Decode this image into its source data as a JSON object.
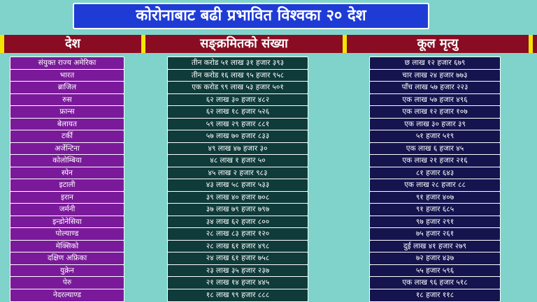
{
  "title": "कोरोनाबाट बढी प्रभावित विश्वका २० देश",
  "headers": {
    "country": "देश",
    "infected": "सङ्क्रमितको संख्या",
    "deaths": "कूल मृत्यु"
  },
  "rows": [
    {
      "country": "संयुक्त राज्य अमेरिका",
      "infected": "तीन करोड ५१ लाख ३१ हजार ३९३",
      "deaths": "छ लाख १२ हजार ६७९"
    },
    {
      "country": "भारत",
      "infected": "तीन करोड १६ लाख ९५ हजार ९५८",
      "deaths": "चार लाख २४ हजार ७७३"
    },
    {
      "country": "ब्राजिल",
      "infected": "एक करोड ९९ लाख ५३ हजार ५०१",
      "deaths": "पाँच लाख ५७ हजार २२३"
    },
    {
      "country": "रुस",
      "infected": "६२ लाख ३० हजार ४८२",
      "deaths": "एक लाख ५७ हजार ४९६"
    },
    {
      "country": "फ्रान्स",
      "infected": "६२ लाख १८ हजार ५२६",
      "deaths": "एक लाख १२ हजार १०७"
    },
    {
      "country": "बेलायत",
      "infected": "५९ लाख २९ हजार ८८१",
      "deaths": "एक लाख ३० हजार ३९"
    },
    {
      "country": "टर्की",
      "infected": "५७ लाख ७० हजार ८३३",
      "deaths": "५१ हजार ५१९"
    },
    {
      "country": "अर्जेन्टिना",
      "infected": "४९ लाख ४७ हजार ३०",
      "deaths": "एक लाख ६ हजार ४५"
    },
    {
      "country": "कोलोम्बिया",
      "infected": "४८ लाख १ हजार ५०",
      "deaths": "एक लाख २१ हजार २१६"
    },
    {
      "country": "स्पेन",
      "infected": "४५ लाख २ हजार ९८३",
      "deaths": "८१ हजार ६४३"
    },
    {
      "country": "इटाली",
      "infected": "४३ लाख ५८ हजार ५३३",
      "deaths": "एक लाख २८ हजार ८८"
    },
    {
      "country": "इरान",
      "infected": "३९ लाख ४० हजार ७०८",
      "deaths": "९१ हजार ४०७"
    },
    {
      "country": "जर्मनी",
      "infected": "३७ लाख ७९ हजार ७९७",
      "deaths": "९१ हजार ६८५"
    },
    {
      "country": "इन्डोनेसिया",
      "infected": "३४ लाख ६२ हजार ८००",
      "deaths": "९७ हजार २९१"
    },
    {
      "country": "पोल्याण्ड",
      "infected": "२८ लाख ८३ हजार १२०",
      "deaths": "७५ हजार २६१"
    },
    {
      "country": "मेक्सिको",
      "infected": "२८ लाख ६१ हजार ४९८",
      "deaths": "दुई लाख ४१ हजार २७९"
    },
    {
      "country": "दक्षिण अफ्रिका",
      "infected": "२४ लाख ६१ हजार ७५८",
      "deaths": "७२ हजार ४३७"
    },
    {
      "country": "युक्रेन",
      "infected": "२३ लाख ३५ हजार २३७",
      "deaths": "५५ हजार ५९६"
    },
    {
      "country": "पेरु",
      "infected": "२१ लाख १४ हजार ४४५",
      "deaths": "एक लाख ९६ हजार ५१८"
    },
    {
      "country": "नेदरल्याण्ड",
      "infected": "१८ लाख ९९ हजार ८८८",
      "deaths": "१८ हजार ११८"
    }
  ]
}
